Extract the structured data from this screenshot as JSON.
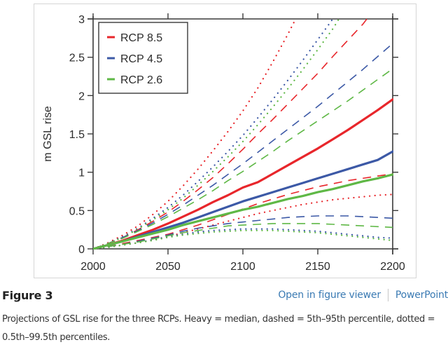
{
  "figure": {
    "title": "Figure 3",
    "links": {
      "open_viewer": "Open in figure viewer",
      "powerpoint": "PowerPoint"
    },
    "caption": "Projections of GSL rise for the three RCPs. Heavy = median, dashed = 5th–95th percentile, dotted = 0.5th–99.5th percentiles."
  },
  "chart_data": {
    "type": "line",
    "title": "",
    "xlabel": "",
    "ylabel": "m GSL rise",
    "xlim": [
      2000,
      2200
    ],
    "ylim": [
      0,
      3
    ],
    "xticks": [
      2000,
      2050,
      2100,
      2150,
      2200
    ],
    "xtick_labels": [
      "2000",
      "2050",
      "2100",
      "2150",
      "2200"
    ],
    "yticks": [
      0,
      0.5,
      1,
      1.5,
      2,
      2.5,
      3
    ],
    "ytick_labels": [
      "0",
      "0.5",
      "1",
      "1.5",
      "2",
      "2.5",
      "3"
    ],
    "grid": false,
    "legend": {
      "placement": "top-left",
      "entries": [
        {
          "label": "RCP 8.5",
          "color": "#e8262b"
        },
        {
          "label": "RCP 4.5",
          "color": "#3c59a6"
        },
        {
          "label": "RCP 2.6",
          "color": "#5fb846"
        }
      ]
    },
    "x": [
      2000,
      2010,
      2020,
      2030,
      2040,
      2050,
      2060,
      2070,
      2080,
      2090,
      2100,
      2110,
      2120,
      2130,
      2140,
      2150,
      2160,
      2170,
      2180,
      2190,
      2200
    ],
    "series": [
      {
        "name": "RCP 8.5 median",
        "scenario": "RCP 8.5",
        "style": "heavy",
        "color": "#e8262b",
        "values": [
          0,
          0.05,
          0.11,
          0.18,
          0.25,
          0.33,
          0.42,
          0.51,
          0.61,
          0.7,
          0.8,
          0.87,
          0.98,
          1.09,
          1.2,
          1.31,
          1.43,
          1.55,
          1.68,
          1.81,
          1.95
        ]
      },
      {
        "name": "RCP 8.5 5th",
        "scenario": "RCP 8.5",
        "style": "dashed",
        "color": "#e8262b",
        "values": [
          0,
          0.03,
          0.07,
          0.11,
          0.15,
          0.19,
          0.25,
          0.31,
          0.38,
          0.45,
          0.52,
          0.59,
          0.65,
          0.71,
          0.76,
          0.81,
          0.85,
          0.89,
          0.92,
          0.95,
          0.98
        ]
      },
      {
        "name": "RCP 8.5 95th",
        "scenario": "RCP 8.5",
        "style": "dashed",
        "color": "#e8262b",
        "values": [
          0,
          0.07,
          0.15,
          0.25,
          0.36,
          0.48,
          0.62,
          0.77,
          0.93,
          1.11,
          1.3,
          1.5,
          1.69,
          1.89,
          2.09,
          2.29,
          2.51,
          2.72,
          2.93,
          null,
          null
        ]
      },
      {
        "name": "RCP 8.5 0.5th",
        "scenario": "RCP 8.5",
        "style": "dotted",
        "color": "#e8262b",
        "values": [
          0,
          0.02,
          0.05,
          0.08,
          0.12,
          0.16,
          0.21,
          0.26,
          0.31,
          0.36,
          0.41,
          0.46,
          0.5,
          0.54,
          0.58,
          0.61,
          0.64,
          0.66,
          0.68,
          0.7,
          0.71
        ]
      },
      {
        "name": "RCP 8.5 99.5th",
        "scenario": "RCP 8.5",
        "style": "dotted",
        "color": "#e8262b",
        "values": [
          0,
          0.08,
          0.18,
          0.3,
          0.45,
          0.62,
          0.82,
          1.04,
          1.28,
          1.53,
          1.8,
          2.1,
          2.44,
          2.8,
          null,
          null,
          null,
          null,
          null,
          null,
          null
        ]
      },
      {
        "name": "RCP 4.5 median",
        "scenario": "RCP 4.5",
        "style": "heavy",
        "color": "#3c59a6",
        "values": [
          0,
          0.05,
          0.1,
          0.16,
          0.22,
          0.28,
          0.34,
          0.41,
          0.48,
          0.55,
          0.62,
          0.68,
          0.74,
          0.8,
          0.86,
          0.92,
          0.98,
          1.04,
          1.1,
          1.16,
          1.27
        ]
      },
      {
        "name": "RCP 4.5 5th",
        "scenario": "RCP 4.5",
        "style": "dashed",
        "color": "#3c59a6",
        "values": [
          0,
          0.03,
          0.06,
          0.1,
          0.14,
          0.18,
          0.23,
          0.27,
          0.3,
          0.33,
          0.35,
          0.37,
          0.39,
          0.41,
          0.42,
          0.43,
          0.43,
          0.43,
          0.42,
          0.41,
          0.4
        ]
      },
      {
        "name": "RCP 4.5 95th",
        "scenario": "RCP 4.5",
        "style": "dashed",
        "color": "#3c59a6",
        "values": [
          0,
          0.07,
          0.15,
          0.24,
          0.34,
          0.45,
          0.57,
          0.7,
          0.83,
          0.97,
          1.11,
          1.26,
          1.41,
          1.56,
          1.71,
          1.86,
          2.02,
          2.18,
          2.34,
          2.51,
          2.68
        ]
      },
      {
        "name": "RCP 4.5 0.5th",
        "scenario": "RCP 4.5",
        "style": "dotted",
        "color": "#3c59a6",
        "values": [
          0,
          0.02,
          0.05,
          0.08,
          0.12,
          0.16,
          0.19,
          0.22,
          0.24,
          0.25,
          0.26,
          0.26,
          0.26,
          0.25,
          0.24,
          0.23,
          0.21,
          0.19,
          0.17,
          0.15,
          0.14
        ]
      },
      {
        "name": "RCP 4.5 99.5th",
        "scenario": "RCP 4.5",
        "style": "dotted",
        "color": "#3c59a6",
        "values": [
          0,
          0.07,
          0.16,
          0.27,
          0.4,
          0.54,
          0.7,
          0.88,
          1.07,
          1.27,
          1.48,
          1.71,
          1.95,
          2.2,
          2.46,
          2.73,
          3.0,
          null,
          null,
          null,
          null
        ]
      },
      {
        "name": "RCP 2.6 median",
        "scenario": "RCP 2.6",
        "style": "heavy",
        "color": "#5fb846",
        "values": [
          0,
          0.05,
          0.1,
          0.15,
          0.2,
          0.25,
          0.31,
          0.36,
          0.41,
          0.46,
          0.51,
          0.55,
          0.6,
          0.65,
          0.69,
          0.74,
          0.78,
          0.83,
          0.88,
          0.92,
          0.97
        ]
      },
      {
        "name": "RCP 2.6 5th",
        "scenario": "RCP 2.6",
        "style": "dashed",
        "color": "#5fb846",
        "values": [
          0,
          0.03,
          0.06,
          0.09,
          0.13,
          0.17,
          0.21,
          0.24,
          0.27,
          0.3,
          0.31,
          0.32,
          0.33,
          0.33,
          0.33,
          0.33,
          0.32,
          0.31,
          0.3,
          0.29,
          0.28
        ]
      },
      {
        "name": "RCP 2.6 95th",
        "scenario": "RCP 2.6",
        "style": "dashed",
        "color": "#5fb846",
        "values": [
          0,
          0.07,
          0.14,
          0.23,
          0.32,
          0.42,
          0.53,
          0.64,
          0.76,
          0.89,
          1.01,
          1.14,
          1.27,
          1.41,
          1.54,
          1.67,
          1.8,
          1.93,
          2.07,
          2.21,
          2.35
        ]
      },
      {
        "name": "RCP 2.6 0.5th",
        "scenario": "RCP 2.6",
        "style": "dotted",
        "color": "#5fb846",
        "values": [
          0,
          0.02,
          0.05,
          0.08,
          0.11,
          0.15,
          0.18,
          0.2,
          0.22,
          0.23,
          0.24,
          0.24,
          0.24,
          0.23,
          0.22,
          0.21,
          0.19,
          0.17,
          0.15,
          0.13,
          0.11
        ]
      },
      {
        "name": "RCP 2.6 99.5th",
        "scenario": "RCP 2.6",
        "style": "dotted",
        "color": "#5fb846",
        "values": [
          0,
          0.07,
          0.15,
          0.26,
          0.38,
          0.51,
          0.66,
          0.83,
          1.01,
          1.2,
          1.4,
          1.62,
          1.85,
          2.09,
          2.34,
          2.6,
          2.87,
          null,
          null,
          null,
          null
        ]
      }
    ]
  }
}
